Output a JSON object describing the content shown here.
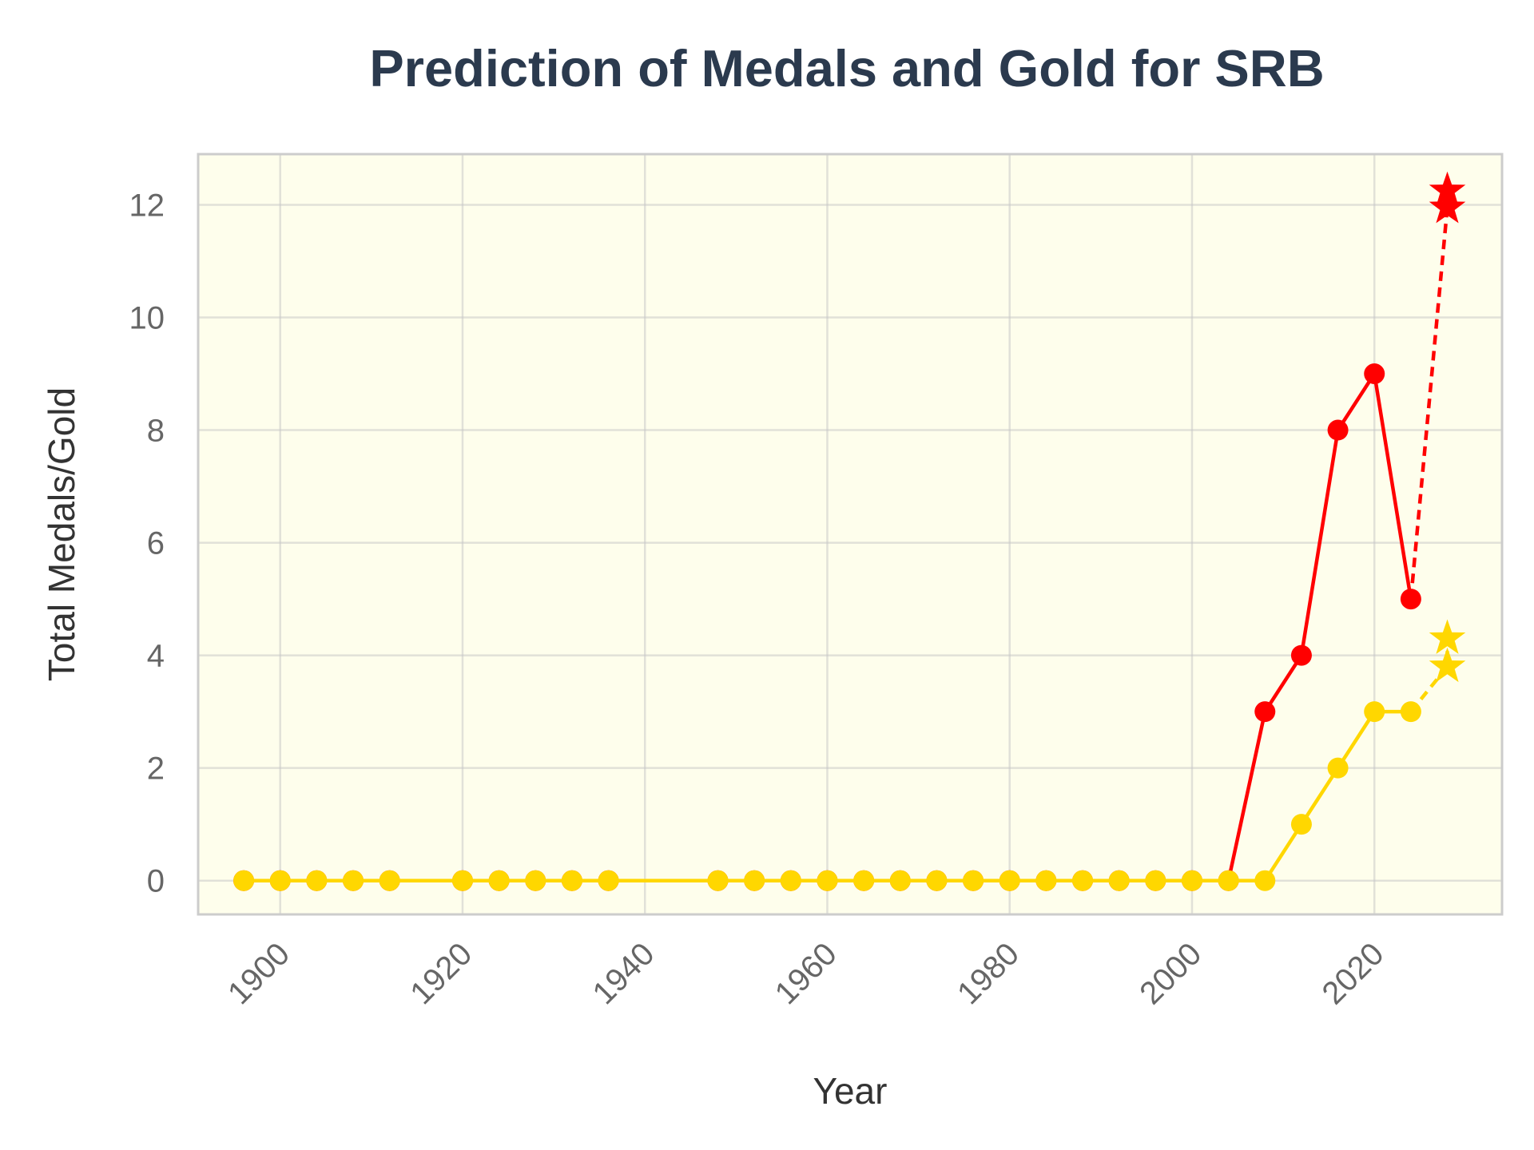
{
  "chart_data": {
    "type": "line",
    "title": "Prediction of Medals and Gold for SRB",
    "xlabel": "Year",
    "ylabel": "Total Medals/Gold",
    "xlim": [
      1891,
      2034
    ],
    "ylim": [
      -0.6,
      12.9
    ],
    "xticks": [
      1900,
      1920,
      1940,
      1960,
      1980,
      2000,
      2020
    ],
    "yticks": [
      0,
      2,
      4,
      6,
      8,
      10,
      12
    ],
    "grid": true,
    "background_color": "#fefeec",
    "series": [
      {
        "color": "#ff0000",
        "style": "solid",
        "marker": "circle",
        "x": [
          1896,
          1900,
          1904,
          1908,
          1912,
          1920,
          1924,
          1928,
          1932,
          1936,
          1948,
          1952,
          1956,
          1960,
          1964,
          1968,
          1972,
          1976,
          1980,
          1984,
          1988,
          1992,
          1996,
          2000,
          2004,
          2008,
          2012,
          2016,
          2020,
          2024
        ],
        "y": [
          0,
          0,
          0,
          0,
          0,
          0,
          0,
          0,
          0,
          0,
          0,
          0,
          0,
          0,
          0,
          0,
          0,
          0,
          0,
          0,
          0,
          0,
          0,
          0,
          0,
          3,
          4,
          8,
          9,
          5
        ]
      },
      {
        "color": "#ff0000",
        "style": "dashed",
        "marker": "star",
        "x": [
          2024,
          2028,
          2028
        ],
        "y": [
          5,
          11.95,
          12.25
        ]
      },
      {
        "color": "#ffd700",
        "style": "solid",
        "marker": "circle",
        "x": [
          1896,
          1900,
          1904,
          1908,
          1912,
          1920,
          1924,
          1928,
          1932,
          1936,
          1948,
          1952,
          1956,
          1960,
          1964,
          1968,
          1972,
          1976,
          1980,
          1984,
          1988,
          1992,
          1996,
          2000,
          2004,
          2008,
          2012,
          2016,
          2020,
          2024
        ],
        "y": [
          0,
          0,
          0,
          0,
          0,
          0,
          0,
          0,
          0,
          0,
          0,
          0,
          0,
          0,
          0,
          0,
          0,
          0,
          0,
          0,
          0,
          0,
          0,
          0,
          0,
          0,
          1,
          2,
          3,
          3
        ]
      },
      {
        "color": "#ffd700",
        "style": "dashed",
        "marker": "star",
        "x": [
          2024,
          2028,
          2028
        ],
        "y": [
          3,
          3.8,
          4.3
        ]
      }
    ]
  }
}
